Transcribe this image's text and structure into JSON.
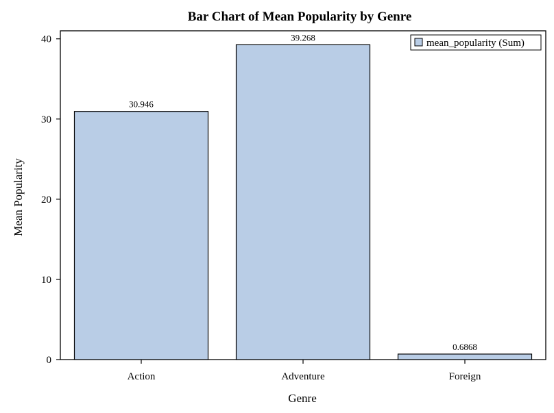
{
  "chart_data": {
    "type": "bar",
    "title": "Bar Chart of Mean Popularity by Genre",
    "xlabel": "Genre",
    "ylabel": "Mean Popularity",
    "categories": [
      "Action",
      "Adventure",
      "Foreign"
    ],
    "series": [
      {
        "name": "mean_popularity (Sum)",
        "values": [
          30.946,
          39.268,
          0.6868
        ],
        "data_labels": [
          "30.946",
          "39.268",
          "0.6868"
        ]
      }
    ],
    "ylim": [
      0,
      41
    ],
    "yticks": [
      0,
      10,
      20,
      30,
      40
    ],
    "grid": false,
    "legend_position": "top-right",
    "colors": {
      "bar_fill": "#b9cde6",
      "bar_stroke": "#000000",
      "axis": "#000000"
    }
  }
}
